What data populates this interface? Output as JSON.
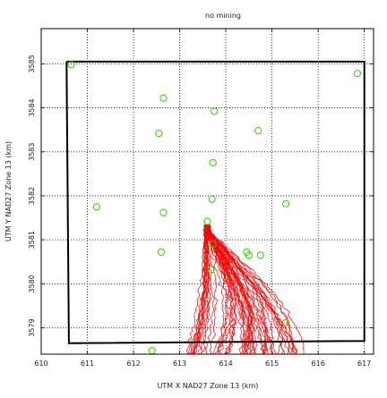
{
  "chart_data": {
    "type": "scatter",
    "title": "no mining",
    "xlabel": "UTM X NAD27 Zone 13 (km)",
    "ylabel": "UTM Y NAD27 Zone 13 (km)",
    "xlim": [
      610,
      617.2
    ],
    "ylim": [
      3578.4,
      3585.8
    ],
    "x_ticks": [
      610,
      611,
      612,
      613,
      614,
      615,
      616,
      617
    ],
    "y_ticks": [
      3579,
      3580,
      3581,
      3582,
      3583,
      3584,
      3585
    ],
    "grid": true,
    "grid_style": "dotted",
    "colors": {
      "markers": "#33cc00",
      "trajectories": "#ff0000",
      "boundary": "#000000"
    },
    "boundary": [
      [
        610.55,
        3585.05
      ],
      [
        617.0,
        3585.05
      ],
      [
        617.0,
        3578.7
      ],
      [
        610.6,
        3578.65
      ],
      [
        610.55,
        3585.05
      ]
    ],
    "wells": [
      {
        "x": 610.65,
        "y": 3584.98
      },
      {
        "x": 616.85,
        "y": 3584.78
      },
      {
        "x": 612.65,
        "y": 3584.22
      },
      {
        "x": 613.75,
        "y": 3583.92
      },
      {
        "x": 612.55,
        "y": 3583.42
      },
      {
        "x": 614.7,
        "y": 3583.48
      },
      {
        "x": 613.72,
        "y": 3582.75
      },
      {
        "x": 613.7,
        "y": 3581.92
      },
      {
        "x": 611.2,
        "y": 3581.75
      },
      {
        "x": 615.3,
        "y": 3581.82
      },
      {
        "x": 612.65,
        "y": 3581.62
      },
      {
        "x": 613.6,
        "y": 3581.42
      },
      {
        "x": 613.72,
        "y": 3580.9
      },
      {
        "x": 614.45,
        "y": 3580.72
      },
      {
        "x": 614.5,
        "y": 3580.65
      },
      {
        "x": 614.75,
        "y": 3580.65
      },
      {
        "x": 612.6,
        "y": 3580.72
      },
      {
        "x": 613.68,
        "y": 3580.32
      },
      {
        "x": 615.3,
        "y": 3579.12
      },
      {
        "x": 612.4,
        "y": 3578.48
      }
    ],
    "pathlines": {
      "source": [
        613.55,
        3581.35
      ],
      "count": 60,
      "x_range": [
        612.95,
        615.7
      ],
      "y_range": [
        3578.4,
        3581.35
      ]
    }
  }
}
